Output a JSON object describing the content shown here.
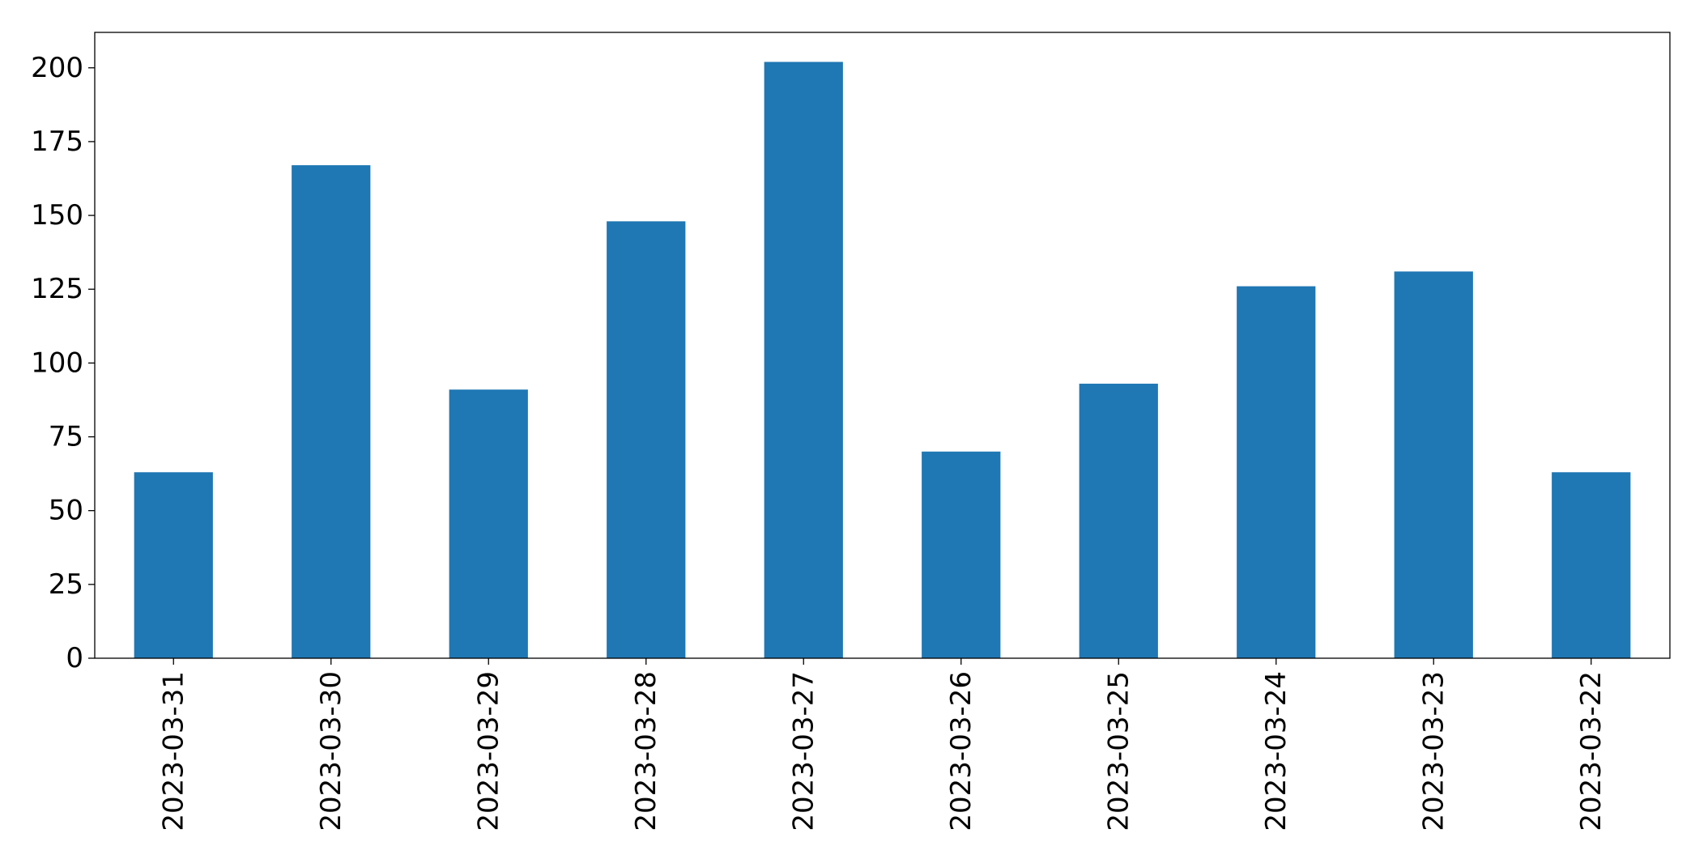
{
  "chart_data": {
    "type": "bar",
    "categories": [
      "2023-03-31",
      "2023-03-30",
      "2023-03-29",
      "2023-03-28",
      "2023-03-27",
      "2023-03-26",
      "2023-03-25",
      "2023-03-24",
      "2023-03-23",
      "2023-03-22"
    ],
    "values": [
      63,
      167,
      91,
      148,
      202,
      70,
      93,
      126,
      131,
      63
    ],
    "title": "",
    "xlabel": "",
    "ylabel": "",
    "ylim": [
      0,
      212
    ],
    "yticks": [
      0,
      25,
      50,
      75,
      100,
      125,
      150,
      175,
      200
    ],
    "bar_color": "#1f77b4",
    "grid": false,
    "legend": "none"
  }
}
